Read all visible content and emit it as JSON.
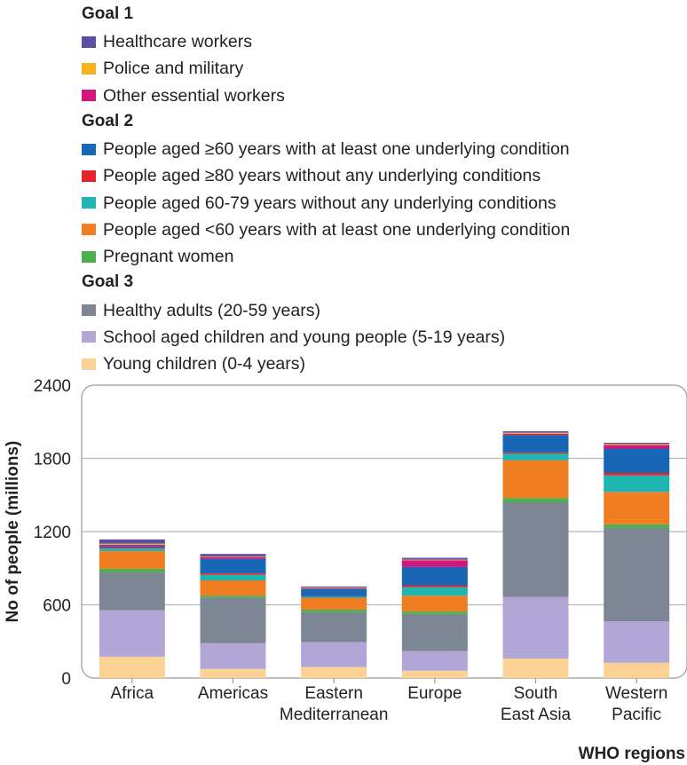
{
  "chart_data": {
    "type": "bar",
    "stacked": true,
    "ylabel": "No of people (millions)",
    "xlabel": "WHO regions",
    "ylim": [
      0,
      2400
    ],
    "yticks": [
      0,
      600,
      1200,
      1800,
      2400
    ],
    "grid": true,
    "legend_position": "top",
    "categories": [
      "Africa",
      "Americas",
      "Eastern Mediterranean",
      "Europe",
      "South East Asia",
      "Western Pacific"
    ],
    "category_lines": [
      [
        "Africa"
      ],
      [
        "Americas"
      ],
      [
        "Eastern",
        "Mediterranean"
      ],
      [
        "Europe"
      ],
      [
        "South",
        "East Asia"
      ],
      [
        "Western",
        "Pacific"
      ]
    ],
    "legend_groups": [
      {
        "title": "Goal 1",
        "series": [
          0,
          1,
          2
        ]
      },
      {
        "title": "Goal 2",
        "series": [
          3,
          4,
          5,
          6,
          7
        ]
      },
      {
        "title": "Goal 3",
        "series": [
          8,
          9,
          10
        ]
      }
    ],
    "series": [
      {
        "name": "Healthcare workers",
        "color": "#5b4ea3",
        "values": [
          35,
          20,
          10,
          15,
          12,
          10
        ]
      },
      {
        "name": "Police and military",
        "color": "#f7b21b",
        "values": [
          8,
          5,
          5,
          5,
          10,
          8
        ]
      },
      {
        "name": "Other essential workers",
        "color": "#d3157f",
        "values": [
          10,
          15,
          5,
          55,
          10,
          30
        ]
      },
      {
        "name": "People aged ≥60 years with at least one underlying condition",
        "color": "#1767b5",
        "values": [
          15,
          120,
          60,
          150,
          140,
          200
        ]
      },
      {
        "name": "People aged ≥80 years without any underlying conditions",
        "color": "#e4242d",
        "values": [
          8,
          12,
          5,
          15,
          10,
          20
        ]
      },
      {
        "name": "People aged 60-79 years without any underlying conditions",
        "color": "#1fb5b0",
        "values": [
          20,
          45,
          10,
          70,
          55,
          135
        ]
      },
      {
        "name": "People aged <60 years with at least one underlying condition",
        "color": "#f07d22",
        "values": [
          145,
          125,
          95,
          130,
          310,
          265
        ]
      },
      {
        "name": "Pregnant women",
        "color": "#4bae4f",
        "values": [
          30,
          15,
          20,
          20,
          35,
          30
        ]
      },
      {
        "name": "Healthy adults (20-59 years)",
        "color": "#7d8794",
        "values": [
          310,
          375,
          245,
          305,
          775,
          765
        ]
      },
      {
        "name": "School aged children and young people (5-19 years)",
        "color": "#b1a6d6",
        "values": [
          380,
          210,
          205,
          160,
          505,
          340
        ]
      },
      {
        "name": "Young children (0-4 years)",
        "color": "#fbd296",
        "values": [
          175,
          75,
          90,
          60,
          160,
          125
        ]
      }
    ]
  }
}
